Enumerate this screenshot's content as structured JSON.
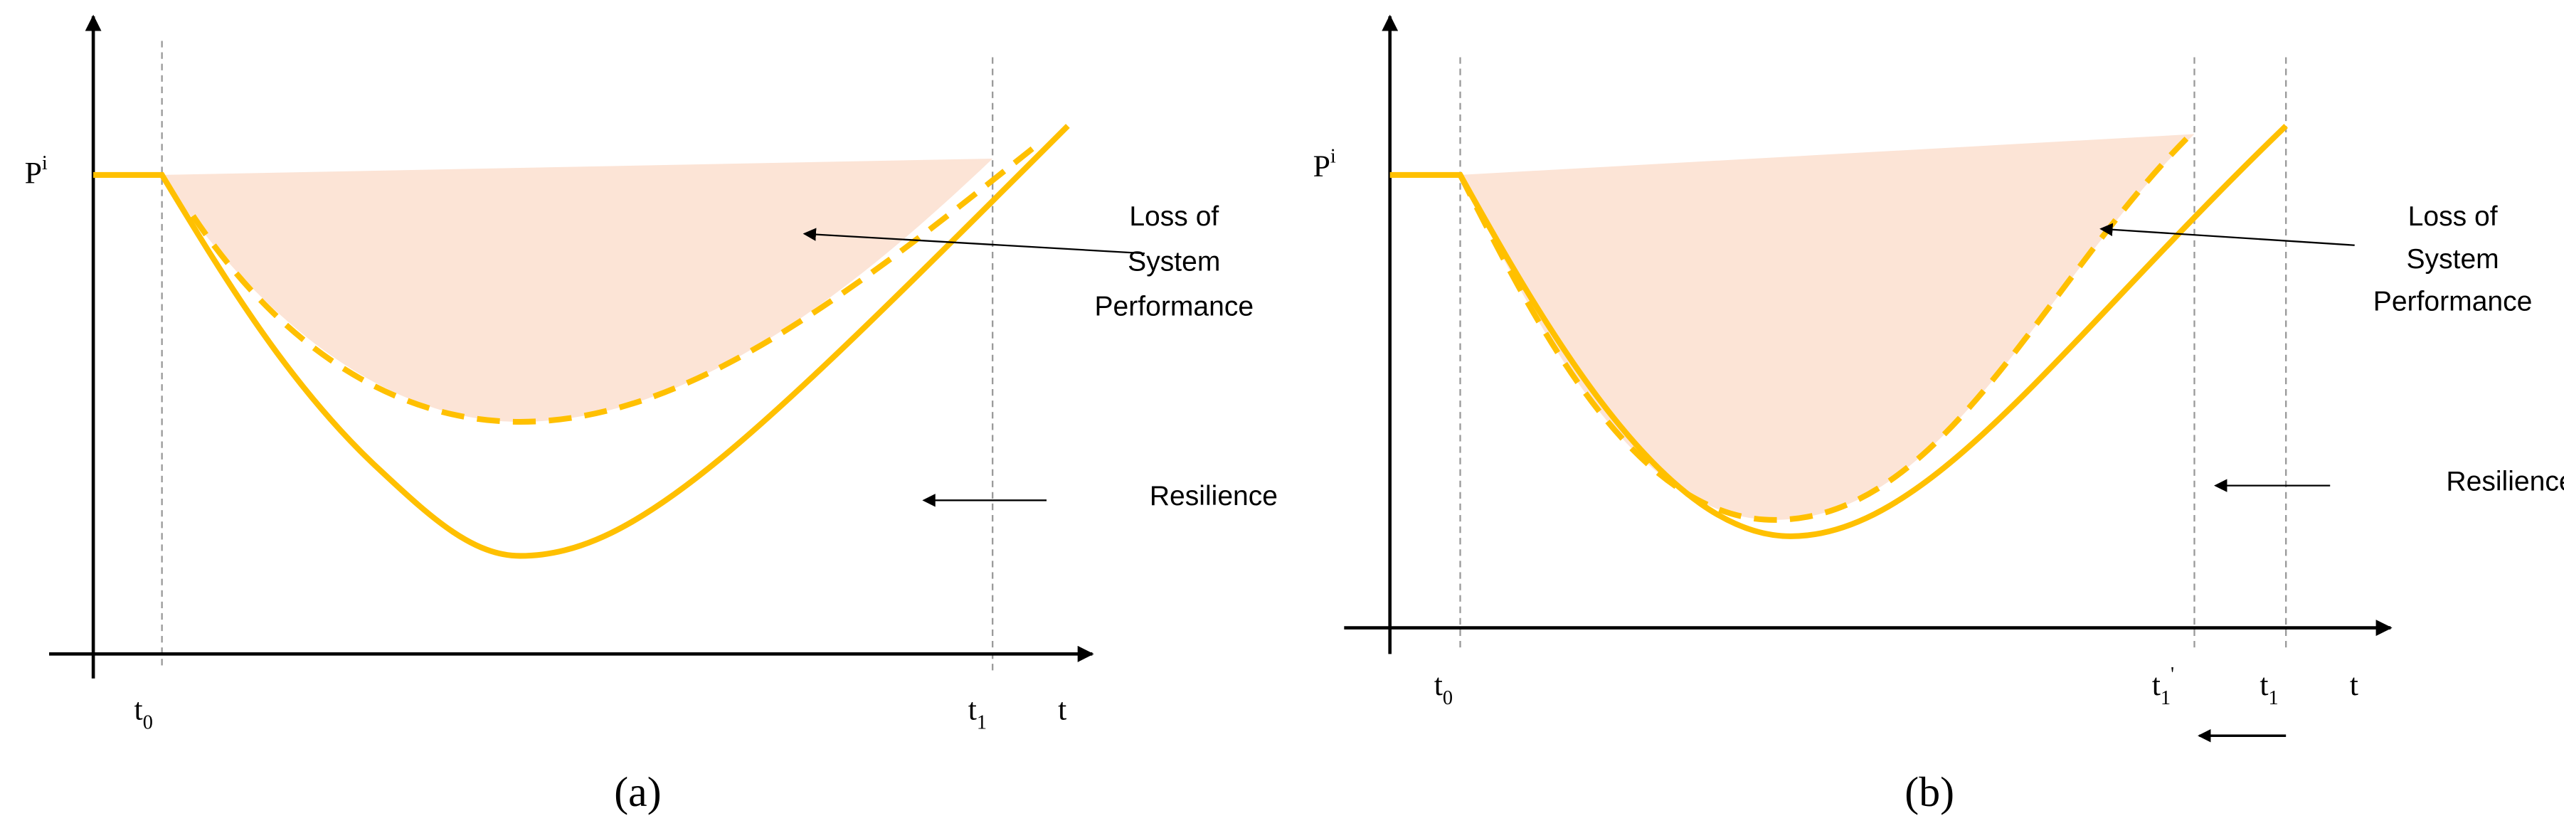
{
  "panels": [
    {
      "label": "(a)",
      "y_axis": {
        "base": "P",
        "sup": "i"
      },
      "x_axis": "t",
      "x_ticks": [
        {
          "base": "t",
          "sub": "0"
        },
        {
          "base": "t",
          "sub": "1"
        }
      ],
      "loss": [
        "Loss of",
        "System",
        "Performance"
      ],
      "resilience": "Resilience"
    },
    {
      "label": "(b)",
      "y_axis": {
        "base": "P",
        "sup": "i"
      },
      "x_axis": "t",
      "x_ticks": [
        {
          "base": "t",
          "sub": "0"
        },
        {
          "base": "t",
          "sub": "1",
          "sup": "'"
        },
        {
          "base": "t",
          "sub": "1"
        }
      ],
      "loss": [
        "Loss of",
        "System",
        "Performance"
      ],
      "resilience": "Resilience"
    }
  ]
}
